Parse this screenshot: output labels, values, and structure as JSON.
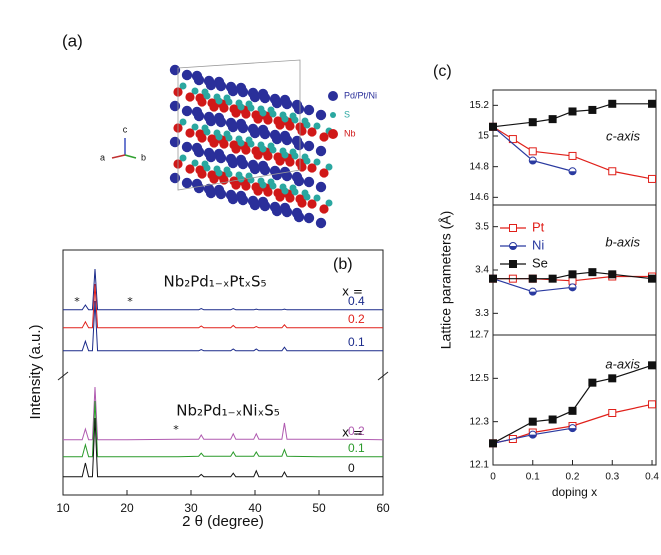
{
  "panel_labels": [
    "(a)",
    "(b)",
    "(c)"
  ],
  "structure": {
    "legend": [
      {
        "name": "Pd/Pt/Ni",
        "color": "#2a2f9a"
      },
      {
        "name": "S",
        "color": "#2aa7a0"
      },
      {
        "name": "Nb",
        "color": "#d01818"
      }
    ],
    "axes": [
      "c",
      "a",
      "b"
    ]
  },
  "lattice_ylabel": "Lattice parameters (Å)",
  "chart_data": [
    {
      "type": "line",
      "xlabel": "2 θ (degree)",
      "ylabel": "Intensity (a.u.)",
      "xlim": [
        10,
        60
      ],
      "xticks": [
        10,
        20,
        30,
        40,
        50,
        60
      ],
      "annotations": [
        "Nb₂Pd₁₋ₓPtₓS₅",
        "x =",
        "Nb₂Pd₁₋ₓNiₓS₅",
        "x =",
        "*",
        "*",
        "*"
      ],
      "x": [
        10,
        13.0,
        13.5,
        14.0,
        14.6,
        15.0,
        15.4,
        20,
        28,
        31.2,
        31.6,
        32,
        36.2,
        36.6,
        37,
        39.8,
        40.2,
        40.6,
        44.2,
        44.6,
        45,
        50,
        55,
        60
      ],
      "series": [
        {
          "name": "0.4",
          "color": "#1a2a8a",
          "values": [
            2,
            2,
            10,
            2,
            2,
            70,
            2,
            2,
            2,
            2,
            4,
            2,
            2,
            4,
            2,
            2,
            3,
            2,
            2,
            3,
            2,
            2,
            2,
            2
          ]
        },
        {
          "name": "0.2",
          "color": "#e0201a",
          "values": [
            2,
            2,
            12,
            2,
            2,
            75,
            2,
            2,
            2,
            2,
            5,
            2,
            2,
            6,
            2,
            2,
            4,
            2,
            2,
            7,
            2,
            2,
            2,
            2
          ]
        },
        {
          "name": "0.1",
          "color": "#1a2a8a",
          "values": [
            2,
            2,
            18,
            2,
            2,
            85,
            2,
            2,
            2,
            2,
            4,
            2,
            2,
            5,
            2,
            2,
            5,
            2,
            2,
            8,
            2,
            2,
            2,
            2
          ]
        },
        {
          "name": "0.2",
          "color": "#b05ab0",
          "values": [
            2,
            2,
            20,
            2,
            2,
            90,
            2,
            2,
            3,
            3,
            10,
            3,
            3,
            12,
            3,
            3,
            12,
            3,
            3,
            30,
            3,
            3,
            3,
            2
          ]
        },
        {
          "name": "0.1",
          "color": "#2a9a2a",
          "values": [
            2,
            2,
            22,
            2,
            2,
            95,
            2,
            2,
            2,
            3,
            8,
            3,
            3,
            10,
            3,
            3,
            10,
            3,
            3,
            14,
            3,
            2,
            2,
            2
          ]
        },
        {
          "name": "0",
          "color": "#111111",
          "values": [
            2,
            2,
            25,
            2,
            2,
            100,
            2,
            2,
            2,
            2,
            6,
            2,
            2,
            8,
            2,
            2,
            12,
            2,
            2,
            10,
            2,
            2,
            2,
            2
          ]
        }
      ]
    },
    {
      "type": "line",
      "annotation": "c-axis",
      "xlim": [
        0,
        0.41
      ],
      "ylim": [
        14.55,
        15.3
      ],
      "yticks": [
        14.6,
        14.8,
        15,
        15.2
      ],
      "series": [
        {
          "color": "#e0201a",
          "marker": "open-square",
          "x": [
            0,
            0.05,
            0.1,
            0.2,
            0.3,
            0.4
          ],
          "values": [
            15.06,
            14.98,
            14.9,
            14.87,
            14.77,
            14.72
          ]
        },
        {
          "color": "#2a3aa0",
          "marker": "half-circle",
          "x": [
            0,
            0.1,
            0.2
          ],
          "values": [
            15.06,
            14.84,
            14.77
          ]
        },
        {
          "color": "#111111",
          "marker": "square",
          "x": [
            0,
            0.1,
            0.15,
            0.2,
            0.25,
            0.3,
            0.4
          ],
          "values": [
            15.06,
            15.09,
            15.11,
            15.16,
            15.17,
            15.21,
            15.21
          ]
        }
      ]
    },
    {
      "type": "line",
      "annotation": "b-axis",
      "legend": "upper left",
      "xlim": [
        0,
        0.41
      ],
      "ylim": [
        3.25,
        3.55
      ],
      "yticks": [
        3.3,
        3.4,
        3.5
      ],
      "series": [
        {
          "name": "Pt",
          "color": "#e0201a",
          "marker": "open-square",
          "x": [
            0,
            0.05,
            0.1,
            0.2,
            0.3,
            0.4
          ],
          "values": [
            3.38,
            3.38,
            3.38,
            3.375,
            3.385,
            3.385
          ]
        },
        {
          "name": "Ni",
          "color": "#2a3aa0",
          "marker": "half-circle",
          "x": [
            0,
            0.1,
            0.2
          ],
          "values": [
            3.38,
            3.35,
            3.36
          ]
        },
        {
          "name": "Se",
          "color": "#111111",
          "marker": "square",
          "x": [
            0,
            0.1,
            0.15,
            0.2,
            0.25,
            0.3,
            0.4
          ],
          "values": [
            3.38,
            3.38,
            3.38,
            3.39,
            3.395,
            3.39,
            3.38
          ]
        }
      ]
    },
    {
      "type": "line",
      "annotation": "a-axis",
      "xlabel": "doping x",
      "xlim": [
        0,
        0.41
      ],
      "xticks": [
        0,
        0.1,
        0.2,
        0.3,
        0.4
      ],
      "ylim": [
        12.1,
        12.7
      ],
      "yticks": [
        12.1,
        12.3,
        12.5,
        12.7
      ],
      "series": [
        {
          "color": "#e0201a",
          "marker": "open-square",
          "x": [
            0,
            0.05,
            0.1,
            0.2,
            0.3,
            0.4
          ],
          "values": [
            12.2,
            12.22,
            12.25,
            12.28,
            12.34,
            12.38
          ]
        },
        {
          "color": "#2a3aa0",
          "marker": "half-circle",
          "x": [
            0,
            0.1,
            0.2
          ],
          "values": [
            12.2,
            12.24,
            12.27
          ]
        },
        {
          "color": "#111111",
          "marker": "square",
          "x": [
            0,
            0.1,
            0.15,
            0.2,
            0.25,
            0.3,
            0.4
          ],
          "values": [
            12.2,
            12.3,
            12.31,
            12.35,
            12.48,
            12.5,
            12.56
          ]
        }
      ]
    }
  ]
}
